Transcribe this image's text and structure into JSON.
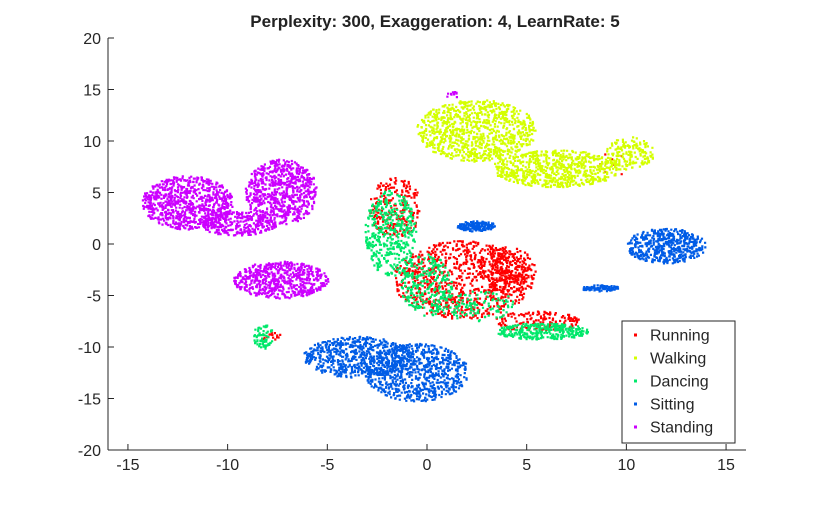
{
  "chart_data": {
    "type": "scatter",
    "title": "Perplexity: 300, Exaggeration: 4, LearnRate: 5",
    "xlabel": "",
    "ylabel": "",
    "xlim": [
      -16,
      16
    ],
    "ylim": [
      -20,
      20
    ],
    "xticks": [
      -15,
      -10,
      -5,
      0,
      5,
      10,
      15
    ],
    "yticks": [
      -20,
      -15,
      -10,
      -5,
      0,
      5,
      10,
      15,
      20
    ],
    "xtick_labels": [
      "-15",
      "-10",
      "-5",
      "0",
      "5",
      "10",
      "15"
    ],
    "ytick_labels": [
      "-20",
      "-15",
      "-10",
      "-5",
      "0",
      "5",
      "10",
      "15",
      "20"
    ],
    "grid": false,
    "legend_position": "bottom-right",
    "series": [
      {
        "name": "Running",
        "color": "#ff0000",
        "clusters": [
          {
            "cx": 1.8,
            "cy": -3.5,
            "rx": 3.5,
            "ry": 3.8,
            "n": 900
          },
          {
            "cx": -1.6,
            "cy": 3.5,
            "rx": 1.3,
            "ry": 3.0,
            "n": 220
          },
          {
            "cx": 4.0,
            "cy": -2.5,
            "rx": 1.5,
            "ry": 2.2,
            "n": 220
          },
          {
            "cx": 5.5,
            "cy": -7.5,
            "rx": 2.2,
            "ry": 1.0,
            "n": 160
          },
          {
            "cx": -7.8,
            "cy": -9.0,
            "rx": 0.5,
            "ry": 0.4,
            "n": 18
          },
          {
            "cx": 9.5,
            "cy": 7.8,
            "rx": 1.0,
            "ry": 1.2,
            "n": 8
          }
        ]
      },
      {
        "name": "Walking",
        "color": "#d4ff00",
        "clusters": [
          {
            "cx": 2.5,
            "cy": 11.0,
            "rx": 3.0,
            "ry": 3.0,
            "n": 900
          },
          {
            "cx": 6.5,
            "cy": 7.3,
            "rx": 3.2,
            "ry": 1.8,
            "n": 700
          },
          {
            "cx": 10.2,
            "cy": 8.8,
            "rx": 1.2,
            "ry": 1.6,
            "n": 160
          }
        ]
      },
      {
        "name": "Dancing",
        "color": "#00e86a",
        "clusters": [
          {
            "cx": -1.8,
            "cy": 1.0,
            "rx": 1.3,
            "ry": 4.2,
            "n": 420
          },
          {
            "cx": 0.0,
            "cy": -4.0,
            "rx": 1.3,
            "ry": 3.0,
            "n": 260
          },
          {
            "cx": 5.8,
            "cy": -8.5,
            "rx": 2.3,
            "ry": 0.8,
            "n": 300
          },
          {
            "cx": 2.5,
            "cy": -6.0,
            "rx": 2.0,
            "ry": 1.5,
            "n": 120
          },
          {
            "cx": -8.2,
            "cy": -9.0,
            "rx": 0.5,
            "ry": 1.2,
            "n": 70
          }
        ]
      },
      {
        "name": "Sitting",
        "color": "#005ce6",
        "clusters": [
          {
            "cx": -3.5,
            "cy": -11.0,
            "rx": 2.7,
            "ry": 2.0,
            "n": 650
          },
          {
            "cx": -0.5,
            "cy": -12.5,
            "rx": 2.6,
            "ry": 2.8,
            "n": 750
          },
          {
            "cx": 12.0,
            "cy": -0.2,
            "rx": 2.0,
            "ry": 1.7,
            "n": 500
          },
          {
            "cx": 2.5,
            "cy": 1.7,
            "rx": 1.0,
            "ry": 0.5,
            "n": 160
          },
          {
            "cx": 8.7,
            "cy": -4.3,
            "rx": 1.0,
            "ry": 0.3,
            "n": 90
          }
        ]
      },
      {
        "name": "Standing",
        "color": "#cc00ff",
        "clusters": [
          {
            "cx": -12.0,
            "cy": 4.0,
            "rx": 2.3,
            "ry": 2.6,
            "n": 800
          },
          {
            "cx": -7.3,
            "cy": 5.0,
            "rx": 1.8,
            "ry": 3.2,
            "n": 700
          },
          {
            "cx": -9.5,
            "cy": 2.0,
            "rx": 2.0,
            "ry": 1.2,
            "n": 300
          },
          {
            "cx": -7.3,
            "cy": -3.5,
            "rx": 2.4,
            "ry": 1.8,
            "n": 600
          },
          {
            "cx": 1.3,
            "cy": 14.5,
            "rx": 0.4,
            "ry": 0.3,
            "n": 10
          }
        ]
      }
    ]
  }
}
